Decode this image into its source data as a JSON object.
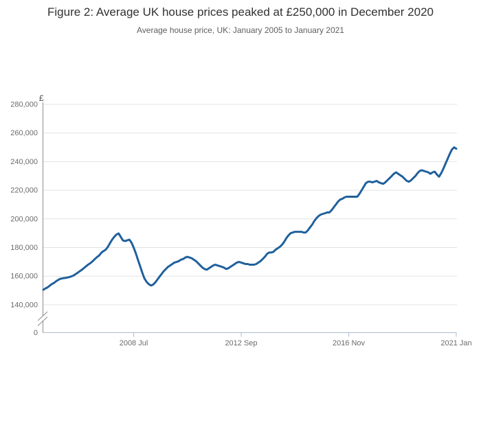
{
  "header": {
    "title": "Figure 2: Average UK house prices peaked at £250,000 in December 2020",
    "subtitle": "Average house price, UK: January 2005 to January 2021"
  },
  "chart_data": {
    "type": "line",
    "title": "Figure 2: Average UK house prices peaked at £250,000 in December 2020",
    "subtitle": "Average house price, UK: January 2005 to January 2021",
    "unit_label": "£",
    "frequency": "monthly",
    "x_start": "2005 Jan",
    "x_end": "2021 Jan",
    "grid": "horizontal-only",
    "legend": "none",
    "y_axis_break": true,
    "ylim_display": [
      140000,
      285000
    ],
    "y_ticks": [
      {
        "value": 280000,
        "label": "280,000"
      },
      {
        "value": 260000,
        "label": "260,000"
      },
      {
        "value": 240000,
        "label": "240,000"
      },
      {
        "value": 220000,
        "label": "220,000"
      },
      {
        "value": 200000,
        "label": "200,000"
      },
      {
        "value": 180000,
        "label": "180,000"
      },
      {
        "value": 160000,
        "label": "160,000"
      },
      {
        "value": 140000,
        "label": "140,000"
      },
      {
        "value": 0,
        "label": "0"
      }
    ],
    "x_ticks": [
      {
        "label": "2008 Jul",
        "month_index": 42
      },
      {
        "label": "2012 Sep",
        "month_index": 92
      },
      {
        "label": "2016 Nov",
        "month_index": 142
      },
      {
        "label": "2021 Jan",
        "month_index": 192
      }
    ],
    "colors": {
      "line": "#1f609c",
      "grid": "#e2e2e2",
      "y_axis": "#8c8c8c",
      "x_axis": "#a9bdcf",
      "tick_text": "#6b6b6b",
      "unit_text": "#4a4a4a",
      "title_text": "#323132",
      "subtitle_text": "#5e5e5e"
    },
    "series": [
      {
        "name": "Average house price (£), monthly from 2005 Jan to 2021 Jan",
        "values": [
          150500,
          151400,
          152200,
          153400,
          154500,
          155300,
          156500,
          157400,
          158200,
          158500,
          158700,
          159000,
          159300,
          159800,
          160400,
          161400,
          162400,
          163500,
          164500,
          165800,
          167000,
          168200,
          169200,
          170500,
          172000,
          173400,
          174500,
          176400,
          177500,
          178500,
          180400,
          183000,
          185500,
          187500,
          189000,
          189900,
          187500,
          185000,
          184500,
          185000,
          185500,
          183500,
          180000,
          176000,
          171500,
          167000,
          162500,
          158500,
          156000,
          154500,
          153500,
          154000,
          155500,
          157500,
          159500,
          161500,
          163500,
          165000,
          166500,
          167500,
          168500,
          169500,
          170000,
          170500,
          171500,
          172000,
          173000,
          173500,
          173000,
          172500,
          171500,
          170500,
          169000,
          167500,
          166000,
          165000,
          164500,
          165500,
          166500,
          167500,
          168000,
          167500,
          167000,
          166500,
          166000,
          165000,
          165500,
          166500,
          167500,
          168500,
          169500,
          170000,
          169500,
          169000,
          168500,
          168500,
          168000,
          168000,
          168000,
          168500,
          169500,
          170500,
          172000,
          173500,
          175500,
          176500,
          176500,
          177000,
          178500,
          179500,
          180500,
          182000,
          184000,
          186500,
          188500,
          190000,
          190500,
          191000,
          191000,
          191000,
          191000,
          190500,
          190500,
          192000,
          194000,
          196000,
          198500,
          200500,
          202000,
          203000,
          203500,
          204000,
          204500,
          204500,
          206000,
          208000,
          210000,
          212000,
          213500,
          214000,
          215000,
          215500,
          215500,
          215500,
          215500,
          215500,
          215500,
          217500,
          220000,
          222500,
          225000,
          226000,
          226000,
          225500,
          226000,
          226500,
          225500,
          225000,
          224500,
          225500,
          227000,
          228500,
          230000,
          231500,
          232500,
          231500,
          230500,
          229500,
          228000,
          226500,
          226000,
          227000,
          228500,
          230000,
          232000,
          233500,
          234000,
          233500,
          233000,
          232500,
          231500,
          232500,
          233000,
          231000,
          229500,
          232000,
          235000,
          238500,
          242000,
          245500,
          248500,
          250000,
          249000
        ]
      }
    ]
  }
}
